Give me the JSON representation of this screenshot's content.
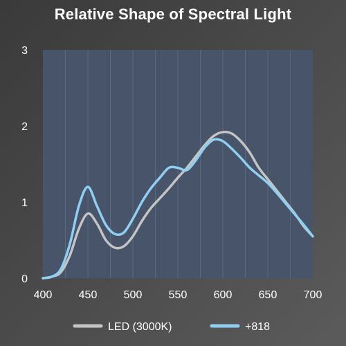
{
  "chart_data": {
    "type": "line",
    "title": "Relative Shape of Spectral Light",
    "xlabel": "",
    "ylabel": "",
    "xlim": [
      400,
      700
    ],
    "ylim": [
      0,
      3
    ],
    "xticks": [
      400,
      450,
      500,
      550,
      600,
      650,
      700
    ],
    "yticks": [
      0,
      1,
      2,
      3
    ],
    "grid": "vertical",
    "legend": "bottom",
    "series": [
      {
        "name": "LED (3000K)",
        "color": "#c4c4c4",
        "x": [
          400,
          410,
          420,
          430,
          440,
          450,
          460,
          470,
          480,
          490,
          500,
          510,
          520,
          530,
          540,
          550,
          560,
          570,
          580,
          590,
          600,
          610,
          620,
          630,
          640,
          650,
          660,
          670,
          680,
          690,
          700
        ],
        "y": [
          0.0,
          0.02,
          0.08,
          0.3,
          0.65,
          0.85,
          0.72,
          0.5,
          0.4,
          0.42,
          0.55,
          0.75,
          0.92,
          1.05,
          1.18,
          1.32,
          1.45,
          1.6,
          1.75,
          1.87,
          1.92,
          1.9,
          1.8,
          1.65,
          1.45,
          1.3,
          1.15,
          1.0,
          0.85,
          0.68,
          0.55
        ]
      },
      {
        "name": "+818",
        "color": "#8fd0f2",
        "x": [
          400,
          410,
          420,
          430,
          440,
          450,
          460,
          470,
          480,
          490,
          500,
          510,
          520,
          530,
          540,
          550,
          560,
          570,
          580,
          590,
          600,
          610,
          620,
          630,
          640,
          650,
          660,
          670,
          680,
          690,
          700
        ],
        "y": [
          0.0,
          0.02,
          0.12,
          0.45,
          0.95,
          1.2,
          0.95,
          0.7,
          0.58,
          0.6,
          0.78,
          1.0,
          1.18,
          1.32,
          1.45,
          1.45,
          1.42,
          1.55,
          1.72,
          1.82,
          1.8,
          1.7,
          1.58,
          1.45,
          1.35,
          1.25,
          1.12,
          0.98,
          0.84,
          0.7,
          0.55
        ]
      }
    ]
  }
}
